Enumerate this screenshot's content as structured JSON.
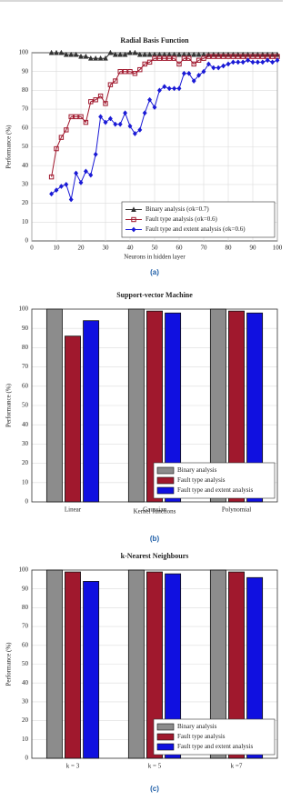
{
  "chart_data": [
    {
      "type": "line",
      "title": "Radial Basis Function",
      "caption": "(a)",
      "x_label": "Neurons in hidden layer",
      "y_label": "Performance (%)",
      "x": [
        8,
        10,
        12,
        14,
        16,
        18,
        20,
        22,
        24,
        26,
        28,
        30,
        32,
        34,
        36,
        38,
        40,
        42,
        44,
        46,
        48,
        50,
        52,
        54,
        56,
        58,
        60,
        62,
        64,
        66,
        68,
        70,
        72,
        74,
        76,
        78,
        80,
        82,
        84,
        86,
        88,
        90,
        92,
        94,
        96,
        98,
        100
      ],
      "series": [
        {
          "name": "Binary analysis (σk=0.7)",
          "color": "#333333",
          "marker": "triangle",
          "values": [
            100,
            100,
            100,
            99,
            99,
            99,
            98,
            98,
            97,
            97,
            97,
            97,
            100,
            99,
            99,
            99,
            100,
            100,
            99,
            99,
            99,
            99,
            99,
            99,
            99,
            99,
            99,
            99,
            99,
            99,
            99,
            99,
            99,
            99,
            99,
            99,
            99,
            99,
            99,
            99,
            99,
            99,
            99,
            99,
            99,
            99,
            99
          ]
        },
        {
          "name": "Fault type analysis (σk=0.6)",
          "color": "#a0182d",
          "marker": "square",
          "values": [
            34,
            49,
            55,
            59,
            66,
            66,
            66,
            63,
            74,
            75,
            77,
            73,
            83,
            85,
            90,
            90,
            90,
            89,
            91,
            94,
            95,
            97,
            97,
            97,
            97,
            97,
            94,
            97,
            97,
            94,
            96,
            97,
            98,
            98,
            98,
            98,
            98,
            98,
            98,
            98,
            98,
            98,
            98,
            98,
            98,
            98,
            98
          ]
        },
        {
          "name": "Fault type and extent analysis (σk=0.6)",
          "color": "#1a1ad6",
          "marker": "diamond",
          "values": [
            25,
            27,
            29,
            30,
            22,
            36,
            31,
            37,
            35,
            46,
            66,
            63,
            65,
            62,
            62,
            68,
            61,
            57,
            59,
            68,
            75,
            71,
            80,
            82,
            81,
            81,
            81,
            89,
            89,
            85,
            88,
            90,
            94,
            92,
            92,
            93,
            94,
            95,
            95,
            95,
            96,
            95,
            95,
            95,
            96,
            95,
            96
          ]
        }
      ],
      "xlim": [
        0,
        100
      ],
      "xticks": [
        0,
        10,
        20,
        30,
        40,
        50,
        60,
        70,
        80,
        90,
        100
      ],
      "ylim": [
        0,
        100
      ],
      "yticks": [
        0,
        10,
        20,
        30,
        40,
        50,
        60,
        70,
        80,
        90,
        100
      ],
      "grid": true,
      "legend": "lower right"
    },
    {
      "type": "bar",
      "title": "Support-vector Machine",
      "caption": "(b)",
      "x_label": "Kernel functions",
      "y_label": "Performance (%)",
      "categories": [
        "Linear",
        "Gaussian",
        "Polynomial"
      ],
      "series": [
        {
          "name": "Binary analysis",
          "color": "#8c8c8c",
          "values": [
            100,
            100,
            100
          ]
        },
        {
          "name": "Fault type analysis",
          "color": "#a0182d",
          "values": [
            86,
            99,
            99
          ]
        },
        {
          "name": "Fault type and extent analysis",
          "color": "#1010e0",
          "values": [
            94,
            98,
            98
          ]
        }
      ],
      "ylim": [
        0,
        100
      ],
      "yticks": [
        0,
        10,
        20,
        30,
        40,
        50,
        60,
        70,
        80,
        90,
        100
      ],
      "grid": true,
      "legend": "lower right"
    },
    {
      "type": "bar",
      "title": "k-Nearest Neighbours",
      "caption": "(c)",
      "y_label": "Performance (%)",
      "categories": [
        "k = 3",
        "k = 5",
        "k =7"
      ],
      "series": [
        {
          "name": "Binary analysis",
          "color": "#8c8c8c",
          "values": [
            100,
            100,
            100
          ]
        },
        {
          "name": "Fault type analysis",
          "color": "#a0182d",
          "values": [
            99,
            99,
            99
          ]
        },
        {
          "name": "Fault type and extent analysis",
          "color": "#1010e0",
          "values": [
            94,
            98,
            96
          ]
        }
      ],
      "ylim": [
        0,
        100
      ],
      "yticks": [
        0,
        10,
        20,
        30,
        40,
        50,
        60,
        70,
        80,
        90,
        100
      ],
      "grid": true,
      "legend": "lower right"
    }
  ]
}
